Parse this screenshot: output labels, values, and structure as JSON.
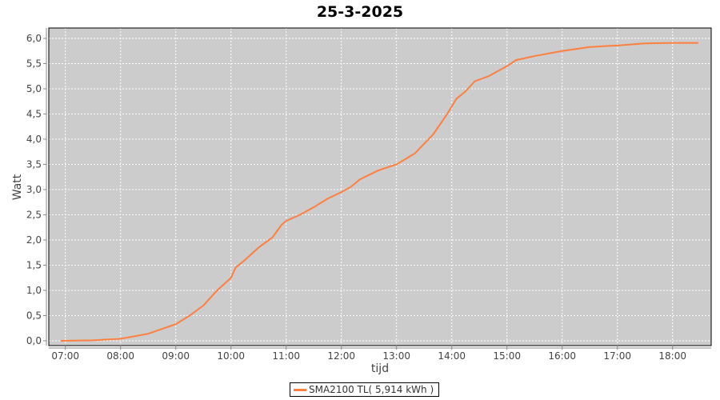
{
  "chart_data": {
    "type": "line",
    "title": "25-3-2025",
    "xlabel": "tijd",
    "ylabel": "Watt",
    "ylim": [
      0,
      6.2
    ],
    "xlim": [
      "06:42",
      "18:42"
    ],
    "yticks": [
      "0,0",
      "0,5",
      "1,0",
      "1,5",
      "2,0",
      "2,5",
      "3,0",
      "3,5",
      "4,0",
      "4,5",
      "5,0",
      "5,5",
      "6,0"
    ],
    "xticks": [
      "07:00",
      "08:00",
      "09:00",
      "10:00",
      "11:00",
      "12:00",
      "13:00",
      "14:00",
      "15:00",
      "16:00",
      "17:00",
      "18:00"
    ],
    "grid": true,
    "legend_position": "bottom",
    "series": [
      {
        "name": "SMA2100 TL( 5,914 kWh )",
        "color": "#ff7f3f",
        "x": [
          "06:55",
          "07:30",
          "08:00",
          "08:30",
          "09:00",
          "09:15",
          "09:30",
          "09:45",
          "10:00",
          "10:05",
          "10:15",
          "10:30",
          "10:45",
          "10:55",
          "11:00",
          "11:15",
          "11:30",
          "11:45",
          "12:00",
          "12:10",
          "12:20",
          "12:40",
          "13:00",
          "13:20",
          "13:40",
          "13:55",
          "14:05",
          "14:15",
          "14:25",
          "14:40",
          "15:00",
          "15:10",
          "15:30",
          "16:00",
          "16:30",
          "17:00",
          "17:30",
          "18:00",
          "18:28"
        ],
        "y": [
          0,
          0.01,
          0.04,
          0.14,
          0.33,
          0.5,
          0.7,
          1.0,
          1.25,
          1.45,
          1.6,
          1.85,
          2.05,
          2.3,
          2.38,
          2.5,
          2.65,
          2.82,
          2.95,
          3.05,
          3.2,
          3.38,
          3.5,
          3.72,
          4.1,
          4.5,
          4.8,
          4.95,
          5.15,
          5.25,
          5.45,
          5.57,
          5.65,
          5.75,
          5.83,
          5.86,
          5.9,
          5.91,
          5.91
        ]
      }
    ],
    "plot_background": "#cccccc",
    "gridline_color": "#ffffff"
  }
}
